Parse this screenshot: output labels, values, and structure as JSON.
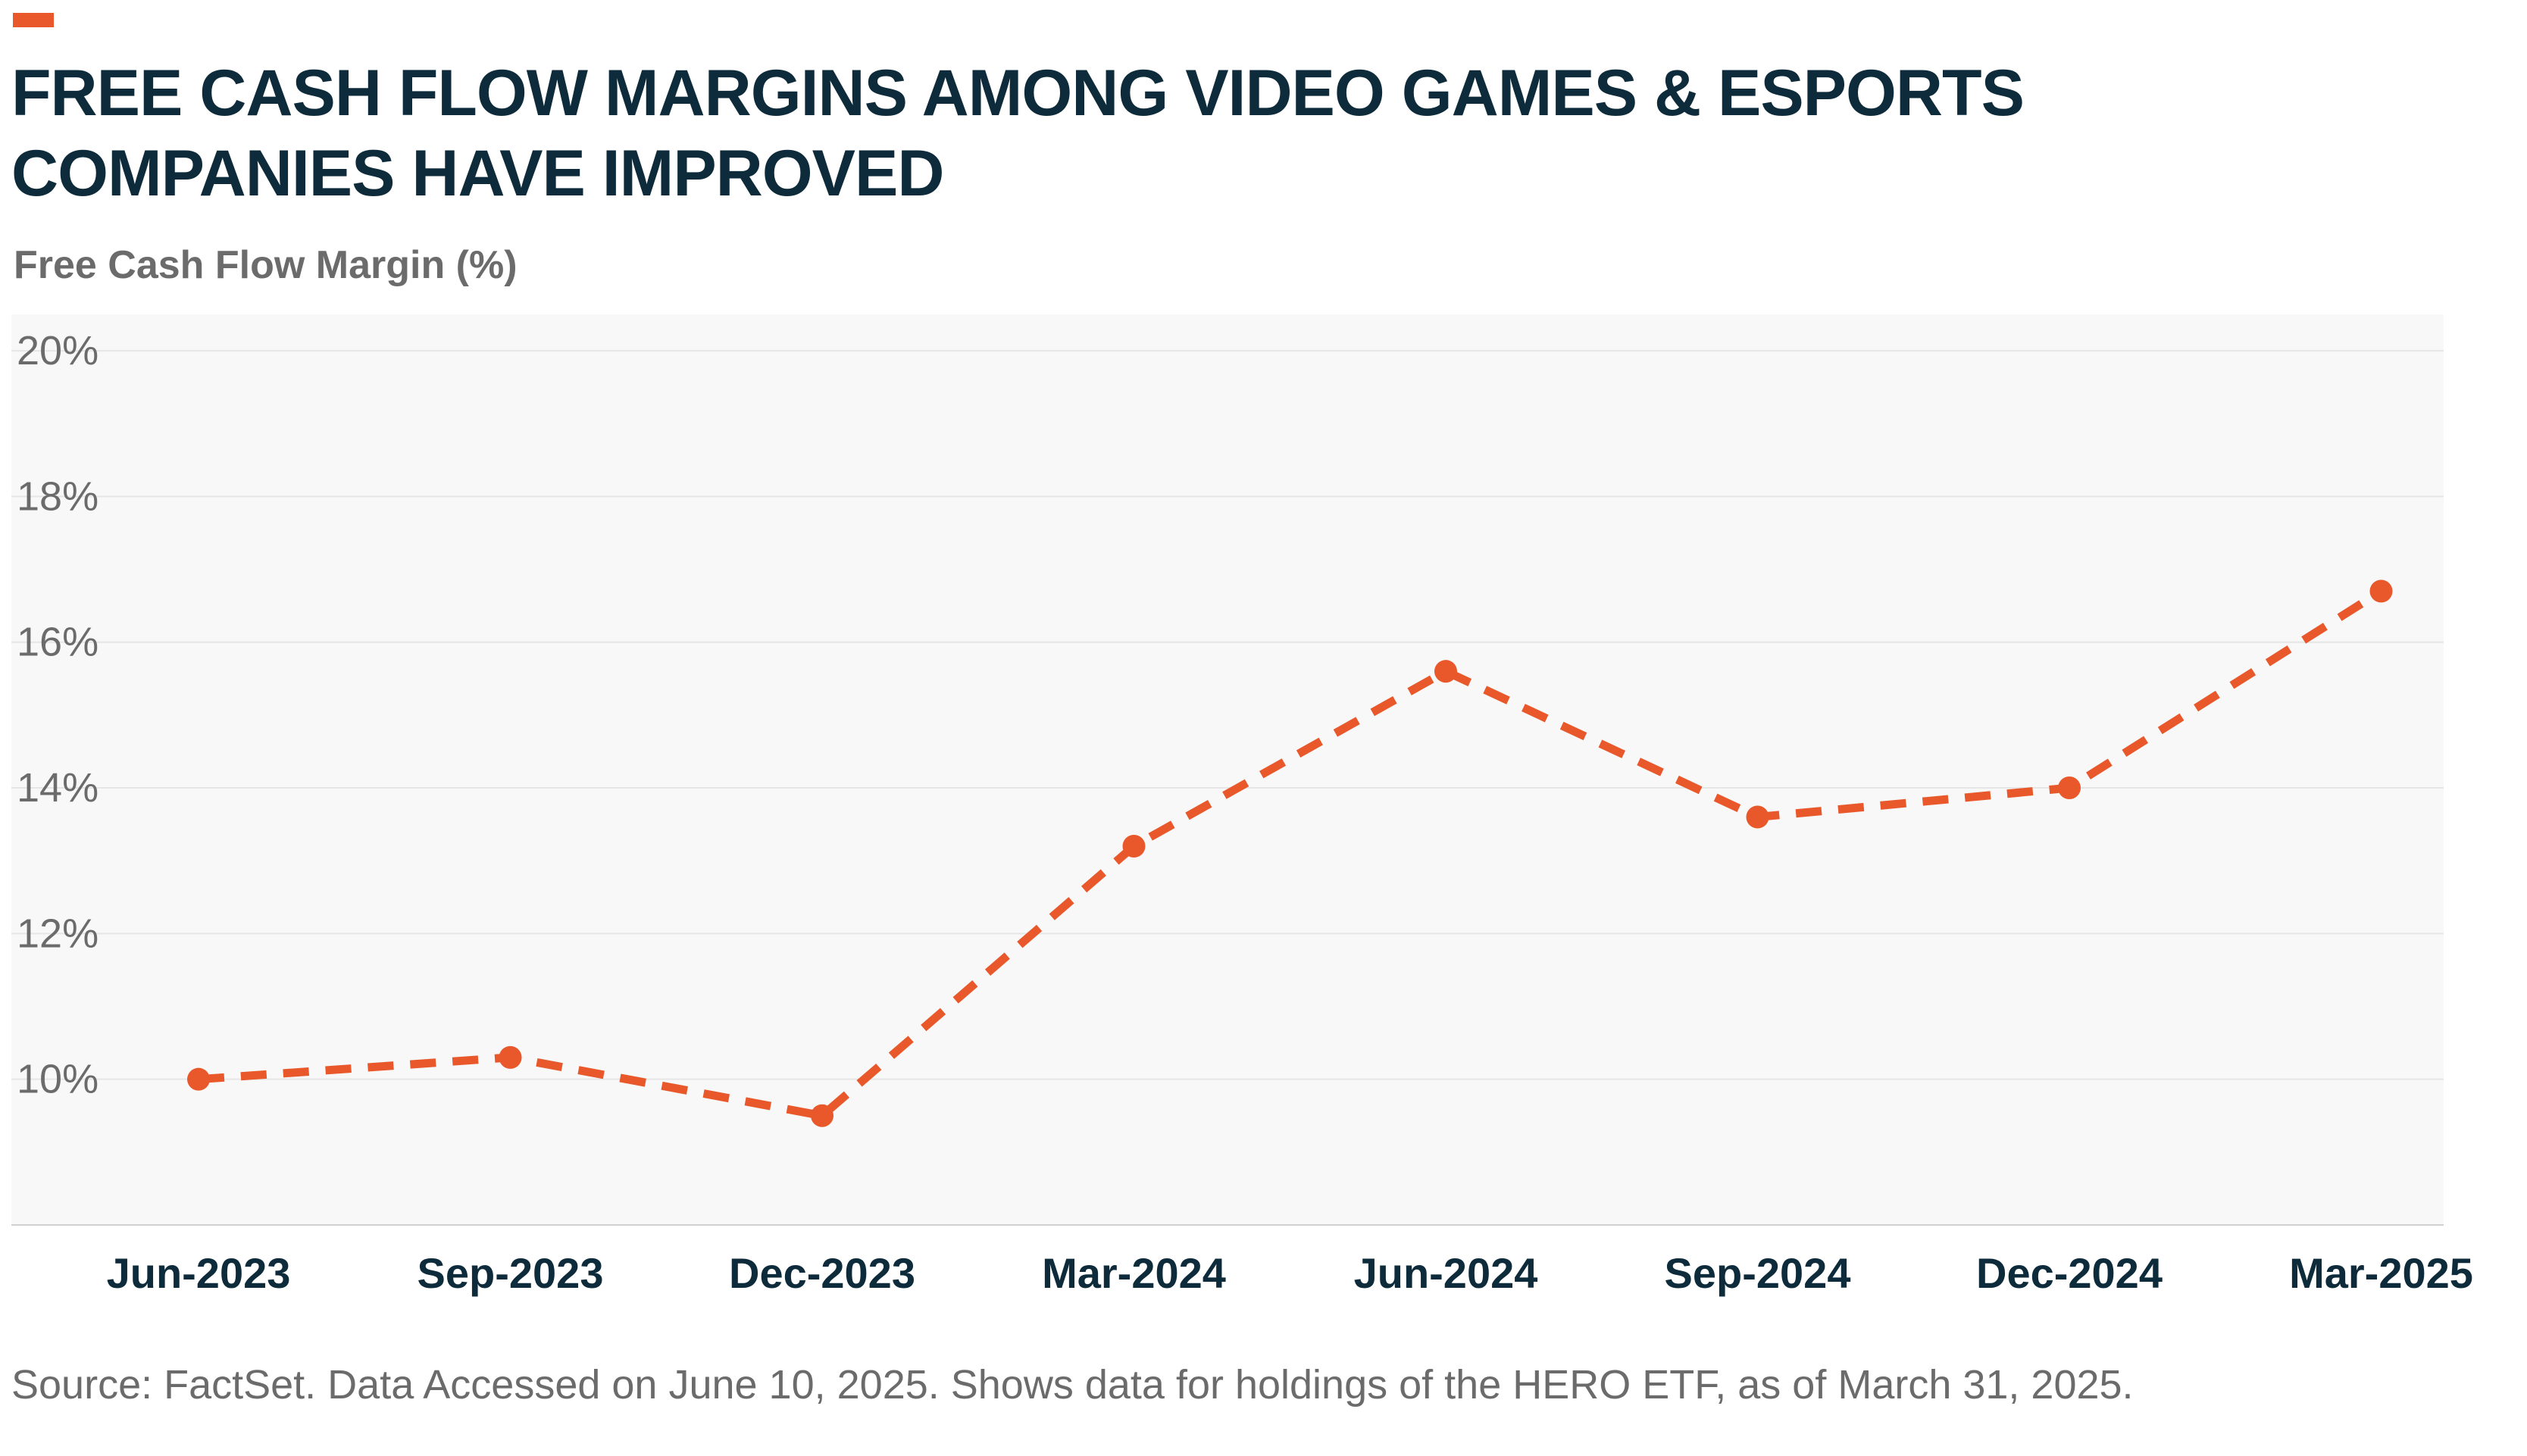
{
  "colors": {
    "accent": "#E8582B",
    "title": "#0D2B3A",
    "muted": "#6B6B6B",
    "plot_bg": "#F7F8F7",
    "grid": "#E6E6E6",
    "axis_text": "#0D2B3A"
  },
  "title": "FREE CASH FLOW MARGINS AMONG VIDEO GAMES & ESPORTS COMPANIES HAVE IMPROVED",
  "source": "Source: FactSet. Data Accessed on June 10, 2025. Shows data for holdings of the HERO ETF, as of March 31, 2025.",
  "chart_data": {
    "type": "line",
    "title": "FREE CASH FLOW MARGINS AMONG VIDEO GAMES & ESPORTS COMPANIES HAVE IMPROVED",
    "xlabel": "",
    "ylabel": "Free Cash Flow Margin (%)",
    "categories": [
      "Jun-2023",
      "Sep-2023",
      "Dec-2023",
      "Mar-2024",
      "Jun-2024",
      "Sep-2024",
      "Dec-2024",
      "Mar-2025"
    ],
    "series": [
      {
        "values": [
          10.0,
          10.3,
          9.5,
          13.2,
          15.6,
          13.6,
          14.0,
          16.7
        ],
        "style": "dashed",
        "markers": true
      }
    ],
    "ylim": [
      8,
      20.5
    ],
    "yticks": [
      10,
      12,
      14,
      16,
      18,
      20
    ],
    "ytick_labels": [
      "10%",
      "12%",
      "14%",
      "16%",
      "18%",
      "20%"
    ],
    "grid": true,
    "legend": "none"
  }
}
